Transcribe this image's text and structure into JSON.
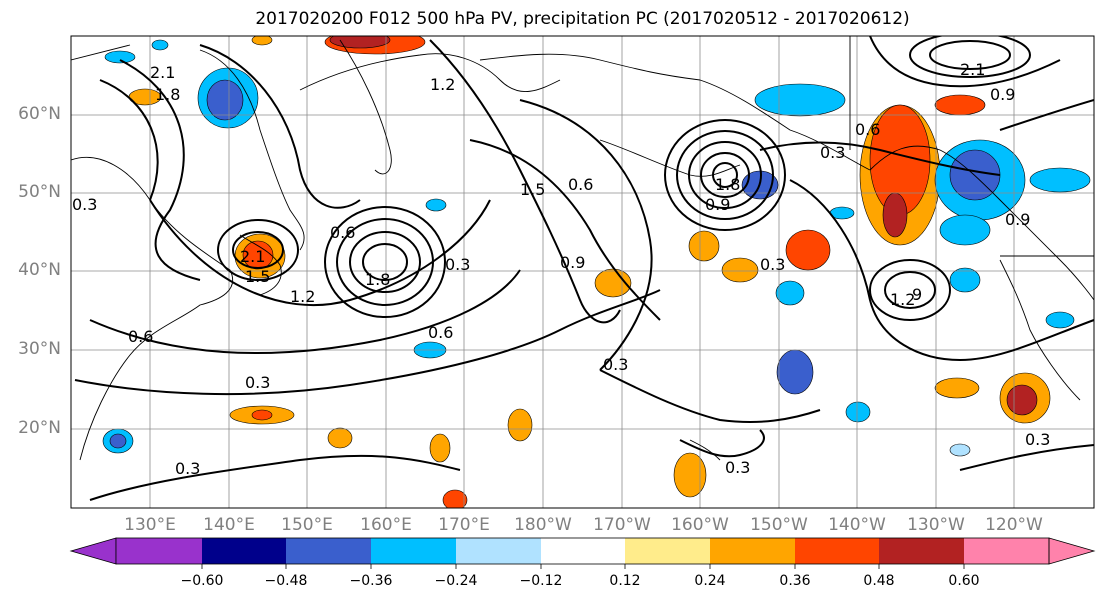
{
  "title": "2017020200 F012 500 hPa PV, precipitation PC (2017020512 - 2017020612)",
  "lat_labels": [
    "60°N",
    "50°N",
    "40°N",
    "30°N",
    "20°N"
  ],
  "lon_labels": [
    "130°E",
    "140°E",
    "150°E",
    "160°E",
    "170°E",
    "180°W",
    "170°W",
    "160°W",
    "150°W",
    "140°W",
    "130°W",
    "120°W"
  ],
  "colorbar": {
    "ticks": [
      "−0.60",
      "−0.48",
      "−0.36",
      "−0.24",
      "−0.12",
      "0.12",
      "0.24",
      "0.36",
      "0.48",
      "0.60"
    ],
    "colors": [
      "#9932cc",
      "#00008b",
      "#3a5fcd",
      "#00bfff",
      "#b0e2ff",
      "#ffffff",
      "#ffec8b",
      "#ffa500",
      "#ff4500",
      "#b22222",
      "#ff82ab"
    ]
  },
  "contour_labels": [
    "0.3",
    "0.6",
    "0.9",
    "1.2",
    "1.5",
    "1.8",
    "2.1"
  ]
}
